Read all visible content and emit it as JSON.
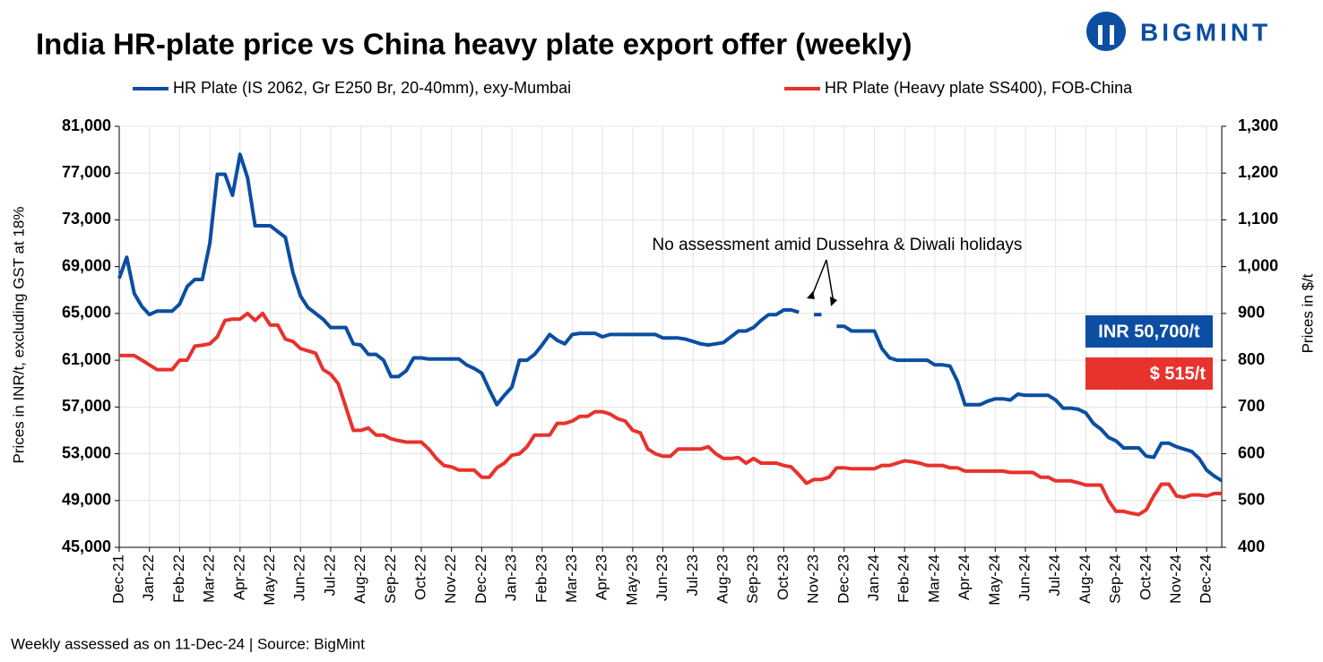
{
  "chart_data": {
    "type": "line",
    "title": "India HR-plate price vs China heavy plate export offer (weekly)",
    "logo": "BIGMINT",
    "ylabel": "Prices in INR/t, excluding GST at 18%",
    "y2label": "Prices in $/t",
    "footnote": "Weekly assessed as on 11-Dec-24  | Source: BigMint",
    "annotations": {
      "gap_note": "No assessment amid Dussehra & Diwali holidays",
      "inr_last": "INR 50,700/t",
      "usd_last": "$ 515/t"
    },
    "grid": true,
    "legend": "top",
    "categories": [
      "Dec-21",
      null,
      null,
      null,
      "Jan-22",
      null,
      null,
      null,
      "Feb-22",
      null,
      null,
      null,
      "Mar-22",
      null,
      null,
      null,
      "Apr-22",
      null,
      null,
      null,
      "May-22",
      null,
      null,
      null,
      "Jun-22",
      null,
      null,
      null,
      "Jul-22",
      null,
      null,
      null,
      "Aug-22",
      null,
      null,
      null,
      "Sep-22",
      null,
      null,
      null,
      "Oct-22",
      null,
      null,
      null,
      "Nov-22",
      null,
      null,
      null,
      "Dec-22",
      null,
      null,
      null,
      "Jan-23",
      null,
      null,
      null,
      "Feb-23",
      null,
      null,
      null,
      "Mar-23",
      null,
      null,
      null,
      "Apr-23",
      null,
      null,
      null,
      "May-23",
      null,
      null,
      null,
      "Jun-23",
      null,
      null,
      null,
      "Jul-23",
      null,
      null,
      null,
      "Aug-23",
      null,
      null,
      null,
      "Sep-23",
      null,
      null,
      null,
      "Oct-23",
      null,
      null,
      null,
      "Nov-23",
      null,
      null,
      null,
      "Dec-23",
      null,
      null,
      null,
      "Jan-24",
      null,
      null,
      null,
      "Feb-24",
      null,
      null,
      null,
      "Mar-24",
      null,
      null,
      null,
      "Apr-24",
      null,
      null,
      null,
      "May-24",
      null,
      null,
      null,
      "Jun-24",
      null,
      null,
      null,
      "Jul-24",
      null,
      null,
      null,
      "Aug-24",
      null,
      null,
      null,
      "Sep-24",
      null,
      null,
      null,
      "Oct-24",
      null,
      null,
      null,
      "Nov-24",
      null,
      null,
      null,
      "Dec-24",
      null,
      null
    ],
    "ylim": [
      45000,
      81000
    ],
    "yticks": [
      {
        "value": 45000,
        "label": "45,000"
      },
      {
        "value": 49000,
        "label": "49,000"
      },
      {
        "value": 53000,
        "label": "53,000"
      },
      {
        "value": 57000,
        "label": "57,000"
      },
      {
        "value": 61000,
        "label": "61,000"
      },
      {
        "value": 65000,
        "label": "65,000"
      },
      {
        "value": 69000,
        "label": "69,000"
      },
      {
        "value": 73000,
        "label": "73,000"
      },
      {
        "value": 77000,
        "label": "77,000"
      },
      {
        "value": 81000,
        "label": "81,000"
      }
    ],
    "y2lim": [
      400,
      1300
    ],
    "y2ticks": [
      400,
      500,
      600,
      700,
      800,
      900,
      {
        "value": 1000,
        "label": "1,000"
      },
      {
        "value": 1100,
        "label": "1,100"
      },
      {
        "value": 1200,
        "label": "1,200"
      },
      {
        "value": 1300,
        "label": "1,300"
      }
    ],
    "series": [
      {
        "name": "HR Plate (IS 2062, Gr E250 Br, 20-40mm), exy-Mumbai",
        "color": "#0b4ea2",
        "values": [
          68000,
          69800,
          66700,
          65600,
          64900,
          65200,
          65200,
          65200,
          65800,
          67300,
          67900,
          67900,
          71000,
          76900,
          76900,
          75100,
          78600,
          76600,
          72500,
          72500,
          72500,
          72000,
          71500,
          68500,
          66500,
          65500,
          65000,
          64500,
          63800,
          63800,
          63800,
          62400,
          62300,
          61500,
          61500,
          61000,
          59600,
          59600,
          60100,
          61200,
          61200,
          61100,
          61100,
          61100,
          61100,
          61100,
          60600,
          60300,
          59900,
          58500,
          57200,
          58000,
          58700,
          61000,
          61000,
          61500,
          62300,
          63200,
          62700,
          62400,
          63200,
          63300,
          63300,
          63300,
          63000,
          63200,
          63200,
          63200,
          63200,
          63200,
          63200,
          63200,
          62900,
          62900,
          62900,
          62800,
          62600,
          62400,
          62300,
          62400,
          62500,
          63000,
          63500,
          63500,
          63800,
          64400,
          64900,
          64900,
          65300,
          65300,
          65100,
          null,
          64900,
          64900,
          null,
          63900,
          63900,
          63500,
          63500,
          63500,
          63500,
          62000,
          61200,
          61000,
          61000,
          61000,
          61000,
          61000,
          60600,
          60600,
          60500,
          59200,
          57200,
          57200,
          57200,
          57500,
          57700,
          57700,
          57600,
          58100,
          58000,
          58000,
          58000,
          58000,
          57600,
          56900,
          56900,
          56800,
          56500,
          55600,
          55100,
          54400,
          54100,
          53500,
          53500,
          53500,
          52800,
          52700,
          53900,
          53900,
          53600,
          53400,
          53200,
          52600,
          51600,
          51100,
          50700
        ]
      },
      {
        "name": "HR Plate (Heavy plate SS400), FOB-China",
        "color": "#e8322d",
        "axis": "y2",
        "values": [
          810,
          810,
          810,
          800,
          790,
          780,
          780,
          780,
          800,
          800,
          830,
          832,
          835,
          850,
          885,
          888,
          888,
          900,
          885,
          900,
          875,
          875,
          845,
          840,
          825,
          820,
          815,
          780,
          770,
          750,
          700,
          650,
          650,
          655,
          640,
          640,
          632,
          628,
          625,
          625,
          625,
          610,
          590,
          575,
          572,
          565,
          565,
          565,
          550,
          550,
          570,
          580,
          597,
          600,
          615,
          640,
          640,
          640,
          665,
          665,
          670,
          680,
          680,
          690,
          690,
          685,
          675,
          670,
          650,
          645,
          610,
          600,
          595,
          595,
          610,
          610,
          610,
          610,
          615,
          600,
          590,
          590,
          592,
          580,
          590,
          580,
          580,
          580,
          575,
          572,
          555,
          537,
          545,
          545,
          550,
          570,
          570,
          568,
          568,
          568,
          568,
          575,
          575,
          580,
          585,
          583,
          580,
          575,
          575,
          575,
          570,
          570,
          563,
          563,
          563,
          563,
          563,
          563,
          560,
          560,
          560,
          560,
          550,
          550,
          542,
          542,
          542,
          538,
          533,
          533,
          533,
          500,
          477,
          477,
          473,
          470,
          480,
          510,
          535,
          535,
          510,
          507,
          512,
          512,
          510,
          515,
          515
        ]
      }
    ]
  }
}
